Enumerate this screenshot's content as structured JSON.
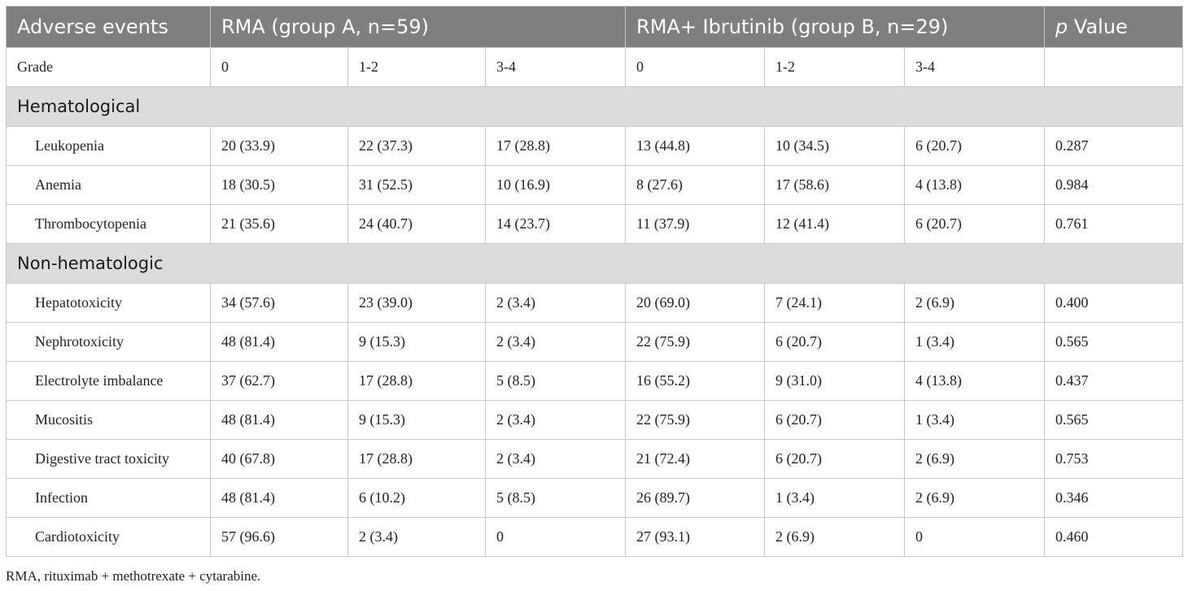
{
  "header": {
    "adverse_events": "Adverse events",
    "group_a": "RMA (group A, n=59)",
    "group_b": "RMA+ Ibrutinib (group B, n=29)",
    "p_italic": "p",
    "p_rest": " Value"
  },
  "grade": {
    "label": "Grade",
    "a0": "0",
    "a12": "1-2",
    "a34": "3-4",
    "b0": "0",
    "b12": "1-2",
    "b34": "3-4",
    "p": ""
  },
  "sections": {
    "hematological": "Hematological",
    "non_hematologic": "Non-hematologic"
  },
  "rows": [
    {
      "label": "Leukopenia",
      "a0": "20 (33.9)",
      "a12": "22 (37.3)",
      "a34": "17 (28.8)",
      "b0": "13 (44.8)",
      "b12": "10 (34.5)",
      "b34": "6 (20.7)",
      "p": "0.287"
    },
    {
      "label": "Anemia",
      "a0": "18 (30.5)",
      "a12": "31 (52.5)",
      "a34": "10 (16.9)",
      "b0": "8 (27.6)",
      "b12": "17 (58.6)",
      "b34": "4 (13.8)",
      "p": "0.984"
    },
    {
      "label": "Thrombocytopenia",
      "a0": "21 (35.6)",
      "a12": "24 (40.7)",
      "a34": "14 (23.7)",
      "b0": "11 (37.9)",
      "b12": "12 (41.4)",
      "b34": "6 (20.7)",
      "p": "0.761"
    },
    {
      "label": "Hepatotoxicity",
      "a0": "34 (57.6)",
      "a12": "23 (39.0)",
      "a34": "2 (3.4)",
      "b0": "20 (69.0)",
      "b12": "7 (24.1)",
      "b34": "2 (6.9)",
      "p": "0.400"
    },
    {
      "label": "Nephrotoxicity",
      "a0": "48 (81.4)",
      "a12": "9 (15.3)",
      "a34": "2 (3.4)",
      "b0": "22 (75.9)",
      "b12": "6 (20.7)",
      "b34": "1 (3.4)",
      "p": "0.565"
    },
    {
      "label": "Electrolyte imbalance",
      "a0": "37 (62.7)",
      "a12": "17 (28.8)",
      "a34": "5 (8.5)",
      "b0": "16 (55.2)",
      "b12": "9 (31.0)",
      "b34": "4 (13.8)",
      "p": "0.437"
    },
    {
      "label": "Mucositis",
      "a0": "48 (81.4)",
      "a12": "9 (15.3)",
      "a34": "2 (3.4)",
      "b0": "22 (75.9)",
      "b12": "6 (20.7)",
      "b34": "1 (3.4)",
      "p": "0.565"
    },
    {
      "label": "Digestive tract toxicity",
      "a0": "40 (67.8)",
      "a12": "17 (28.8)",
      "a34": "2 (3.4)",
      "b0": "21 (72.4)",
      "b12": "6 (20.7)",
      "b34": "2 (6.9)",
      "p": "0.753"
    },
    {
      "label": "Infection",
      "a0": "48 (81.4)",
      "a12": "6 (10.2)",
      "a34": "5 (8.5)",
      "b0": "26 (89.7)",
      "b12": "1 (3.4)",
      "b34": "2 (6.9)",
      "p": "0.346"
    },
    {
      "label": "Cardiotoxicity",
      "a0": "57 (96.6)",
      "a12": "2 (3.4)",
      "a34": "0",
      "b0": "27 (93.1)",
      "b12": "2 (6.9)",
      "b34": "0",
      "p": "0.460"
    }
  ],
  "footnote": "RMA, rituximab + methotrexate + cytarabine.",
  "colors": {
    "header_bg": "#7f7f7f",
    "section_bg": "#dcdcdc",
    "border": "#c8c8c8"
  }
}
